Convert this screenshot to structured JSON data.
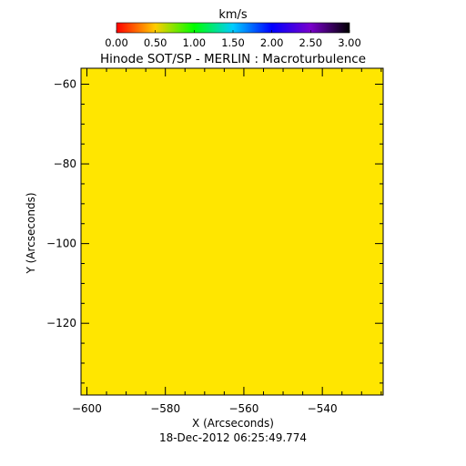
{
  "chart_data": {
    "type": "heatmap",
    "title": "Hinode SOT/SP - MERLIN : Macroturbulence",
    "colorbar": {
      "label": "km/s",
      "range": [
        0.0,
        3.0
      ],
      "tick_values": [
        0.0,
        0.5,
        1.0,
        1.5,
        2.0,
        2.5,
        3.0
      ],
      "tick_labels": [
        "0.00",
        "0.50",
        "1.00",
        "1.50",
        "2.00",
        "2.50",
        "3.00"
      ],
      "colormap": [
        "#ff0000",
        "#ffcc00",
        "#00ff00",
        "#00ccff",
        "#0000ff",
        "#7a00cc",
        "#000000"
      ]
    },
    "xlabel": "X (Arcseconds)",
    "ylabel": "Y (Arcseconds)",
    "xlim": [
      -601.5,
      -524.5
    ],
    "ylim": [
      -138,
      -56
    ],
    "x_ticks": [
      -600,
      -580,
      -560,
      -540
    ],
    "x_tick_labels": [
      "−600",
      "−580",
      "−560",
      "−540"
    ],
    "y_ticks": [
      -60,
      -80,
      -100,
      -120
    ],
    "y_tick_labels": [
      "−60",
      "−80",
      "−100",
      "−120"
    ],
    "fill_color": "#ffe600",
    "fill_value_km_s": 0.6,
    "timestamp": "18-Dec-2012 06:25:49.774"
  }
}
